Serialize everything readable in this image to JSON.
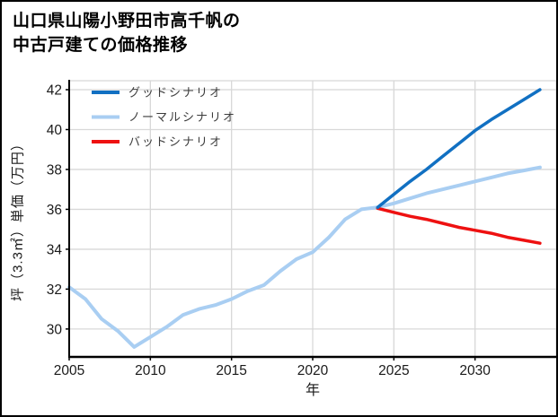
{
  "title": {
    "line1": "山口県山陽小野田市高千帆の",
    "line2": "中古戸建ての価格推移"
  },
  "chart_data": {
    "type": "line",
    "title": "山口県山陽小野田市高千帆の中古戸建ての価格推移",
    "xlabel": "年",
    "ylabel": "坪（3.3㎡）単価（万円）",
    "xlim": [
      2005,
      2035
    ],
    "ylim": [
      28.6,
      42.45
    ],
    "xticks": [
      2005,
      2010,
      2015,
      2020,
      2025,
      2030
    ],
    "yticks": [
      30,
      32,
      34,
      36,
      38,
      40,
      42
    ],
    "grid": true,
    "legend_position": "upper-left",
    "colors": {
      "grid": "#d8d8d8",
      "spine": "#000000",
      "tick_label": "#1a1a1a",
      "legend_text": "#3c3c3c"
    },
    "series": [
      {
        "name": "グッドシナリオ",
        "color": "#1170c2",
        "width": 3.5,
        "x": [
          2024,
          2025,
          2026,
          2027,
          2028,
          2029,
          2030,
          2031,
          2032,
          2033,
          2034
        ],
        "values": [
          36.1,
          36.75,
          37.4,
          38.0,
          38.65,
          39.3,
          39.95,
          40.5,
          41.0,
          41.5,
          42.0
        ]
      },
      {
        "name": "ノーマルシナリオ",
        "color": "#a9cef2",
        "width": 4,
        "x": [
          2005,
          2006,
          2007,
          2008,
          2009,
          2010,
          2011,
          2012,
          2013,
          2014,
          2015,
          2016,
          2017,
          2018,
          2019,
          2020,
          2021,
          2022,
          2023,
          2024,
          2025,
          2026,
          2027,
          2028,
          2029,
          2030,
          2031,
          2032,
          2033,
          2034
        ],
        "values": [
          32.1,
          31.5,
          30.5,
          29.9,
          29.1,
          29.6,
          30.1,
          30.7,
          31.0,
          31.2,
          31.5,
          31.9,
          32.2,
          32.9,
          33.5,
          33.85,
          34.6,
          35.5,
          36.0,
          36.1,
          36.3,
          36.55,
          36.8,
          37.0,
          37.2,
          37.4,
          37.6,
          37.8,
          37.95,
          38.1
        ]
      },
      {
        "name": "バッドシナリオ",
        "color": "#ee1111",
        "width": 3.5,
        "x": [
          2024,
          2025,
          2026,
          2027,
          2028,
          2029,
          2030,
          2031,
          2032,
          2033,
          2034
        ],
        "values": [
          36.05,
          35.85,
          35.65,
          35.5,
          35.3,
          35.1,
          34.95,
          34.8,
          34.6,
          34.45,
          34.3
        ]
      }
    ]
  }
}
